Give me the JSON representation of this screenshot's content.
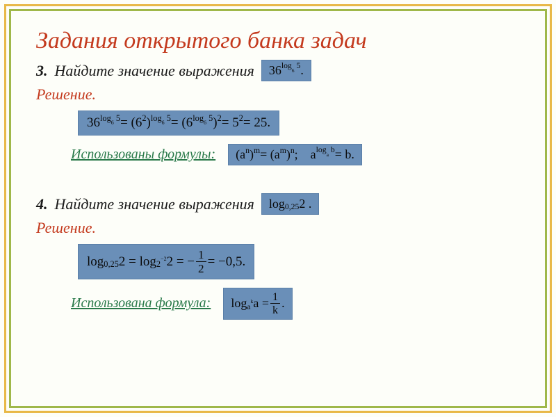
{
  "colors": {
    "outer_border": "#e8b848",
    "inner_border": "#9fb84a",
    "title": "#c43a1e",
    "solution": "#c43a1e",
    "formula_label": "#2a7a4a",
    "box_bg": "#6a8fb8",
    "text": "#1a1a1a",
    "page_bg": "#fdfef9"
  },
  "title": "Задания открытого банка задач",
  "task3": {
    "num": "3.",
    "prompt": "Найдите значение выражения",
    "expr_html": "36<sup>log<sub>6</sub> 5</sup>.",
    "solution_label": "Решение.",
    "solution_html": "36<sup>log<sub>6</sub> 5</sup> = (6<sup>2</sup>)<sup>log<sub>6</sub> 5</sup> = (6<sup>log<sub>6</sub> 5</sup>)<sup>2</sup> = 5<sup>2</sup> = 25.",
    "formulas_label": "Использованы формулы:",
    "formula_html": "(a<sup>n</sup>)<sup>m</sup> = (a<sup>m</sup>)<sup>n</sup> ;&nbsp;&nbsp;&nbsp; a<sup>log<sub>a</sub> b</sup> = b."
  },
  "task4": {
    "num": "4.",
    "prompt": "Найдите значение выражения",
    "expr_html": "log<sub>0,25</sub> 2 .",
    "solution_label": "Решение.",
    "solution_html": "log<sub>0,25</sub> 2 = log<sub>2<sup>&minus;2</sup></sub> 2 = &minus;<span class=\"frac\"><span class=\"num\">1</span><span class=\"den\">2</span></span> = &minus;0,5.",
    "formulas_label": "Использована формула:",
    "formula_html": "log<sub>a<sup>k</sup></sub> a = <span class=\"frac\"><span class=\"num\">1</span><span class=\"den\">k</span></span>."
  }
}
